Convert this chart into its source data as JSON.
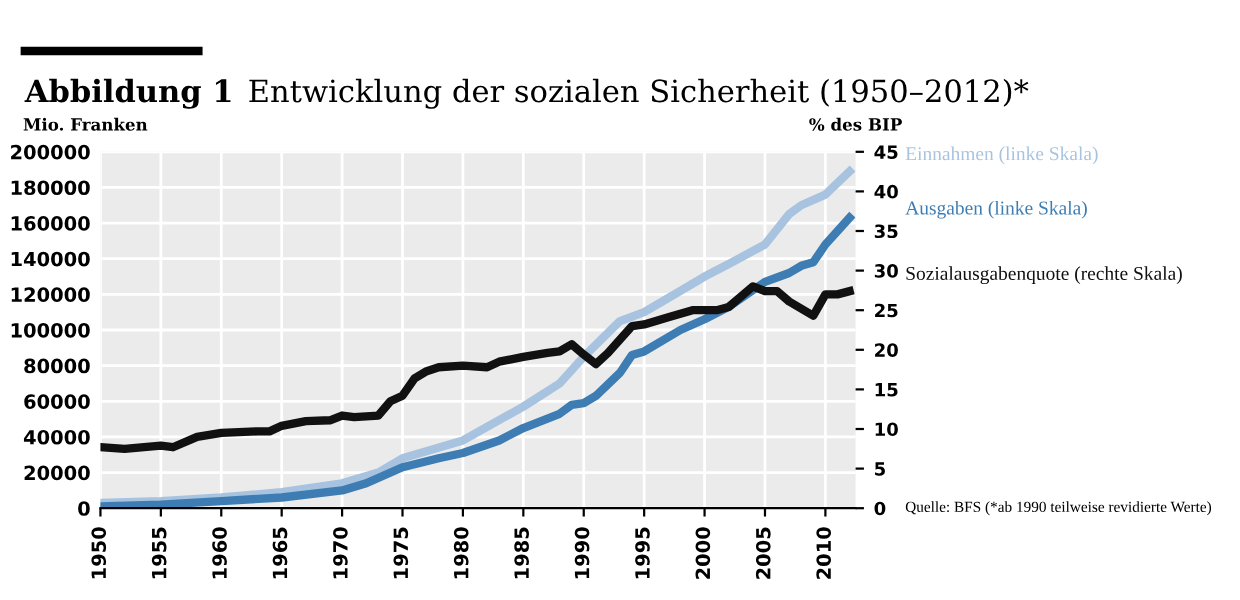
{
  "chart_data": {
    "type": "line",
    "title": "Abbildung 1",
    "subtitle": "Entwicklung der sozialen Sicherheit (1950–2012)*",
    "ylabel": "Mio. Franken",
    "y2label": "% des BIP",
    "series": [
      {
        "name": "Einnahmen (linke Skala)",
        "color": "#a7c3df",
        "x": [
          1950,
          1955,
          1960,
          1965,
          1970,
          1973,
          1975,
          1980,
          1985,
          1988,
          1990,
          1993,
          1995,
          1998,
          2000,
          2002,
          2005,
          2007,
          2008,
          2010,
          2012
        ],
        "values": [
          3000,
          4000,
          6000,
          9000,
          14000,
          20000,
          28000,
          38000,
          57000,
          70000,
          85000,
          105000,
          110000,
          122000,
          130000,
          137000,
          148000,
          165000,
          170000,
          176000,
          189000
        ]
      },
      {
        "name": "Ausgaben (linke Skala)",
        "color": "#3d7db3",
        "x": [
          1950,
          1955,
          1960,
          1965,
          1970,
          1972,
          1975,
          1978,
          1980,
          1983,
          1985,
          1988,
          1989,
          1990,
          1991,
          1993,
          1994,
          1995,
          1998,
          2000,
          2002,
          2005,
          2007,
          2008,
          2009,
          2010,
          2012
        ],
        "values": [
          1000,
          2000,
          4000,
          6000,
          10000,
          14000,
          23000,
          28000,
          31000,
          38000,
          45000,
          53000,
          58000,
          59000,
          63000,
          76000,
          86000,
          88000,
          100000,
          106000,
          113000,
          127000,
          132000,
          136000,
          138000,
          148000,
          163000
        ]
      },
      {
        "name": "Sozialausgabenquote (rechte Skala)",
        "color": "#111111",
        "axis": "y2",
        "x": [
          1950,
          1952,
          1955,
          1956,
          1958,
          1960,
          1963,
          1964,
          1965,
          1967,
          1969,
          1970,
          1971,
          1973,
          1974,
          1975,
          1976,
          1977,
          1978,
          1980,
          1982,
          1983,
          1985,
          1987,
          1988,
          1989,
          1990,
          1991,
          1992,
          1994,
          1995,
          1997,
          1999,
          2001,
          2002,
          2004,
          2005,
          2006,
          2007,
          2009,
          2010,
          2011,
          2012
        ],
        "values": [
          7.7,
          7.5,
          7.9,
          7.7,
          9.0,
          9.5,
          9.7,
          9.7,
          10.4,
          11.0,
          11.1,
          11.7,
          11.5,
          11.7,
          13.5,
          14.2,
          16.4,
          17.3,
          17.8,
          18.0,
          17.8,
          18.5,
          19.1,
          19.6,
          19.8,
          20.7,
          19.4,
          18.2,
          19.6,
          23.0,
          23.2,
          24.1,
          25.0,
          25.0,
          25.4,
          28.0,
          27.4,
          27.4,
          26.1,
          24.3,
          27.0,
          27.0,
          27.4
        ]
      }
    ],
    "xlim": [
      1950,
      2012.5
    ],
    "xticks": [
      1950,
      1955,
      1960,
      1965,
      1970,
      1975,
      1980,
      1985,
      1990,
      1995,
      2000,
      2005,
      2010
    ],
    "ylim": [
      0,
      200000
    ],
    "yticks": [
      0,
      20000,
      40000,
      60000,
      80000,
      100000,
      120000,
      140000,
      160000,
      180000,
      200000
    ],
    "y2lim": [
      0,
      45
    ],
    "y2ticks": [
      0,
      5,
      10,
      15,
      20,
      25,
      30,
      35,
      40,
      45
    ],
    "grid": true,
    "legend": "right",
    "line_style": "solid",
    "marker": "none",
    "annotations": [
      "Quelle: BFS (*ab 1990 teilweise revidierte Werte)"
    ]
  }
}
